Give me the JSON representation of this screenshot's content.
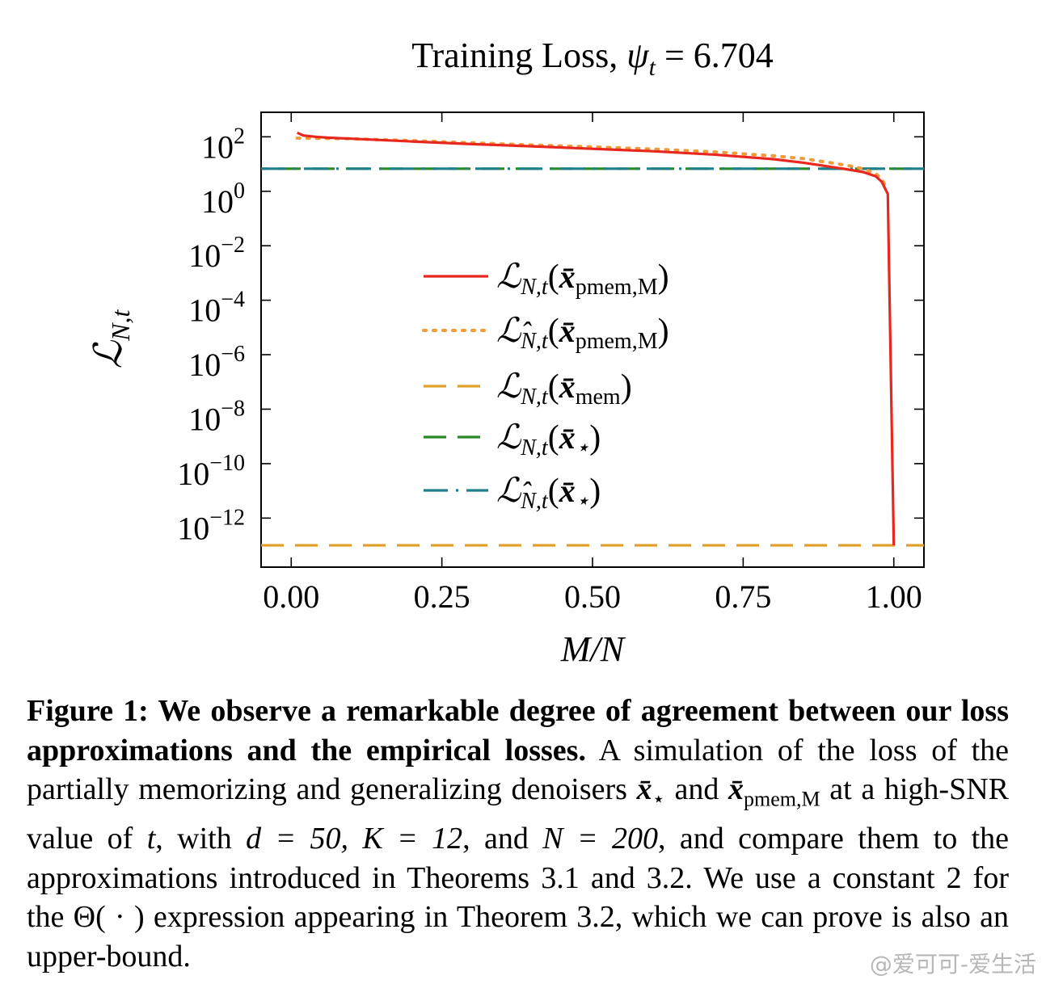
{
  "chart_data": {
    "type": "line",
    "title": "Training Loss, ψ_t = 6.704",
    "xlabel": "M/N",
    "ylabel": "L_{N,t}",
    "xlim": [
      -0.05,
      1.05
    ],
    "ylim_log10": [
      -13.8,
      2.9
    ],
    "yscale": "log",
    "x_ticks": [
      "0.00",
      "0.25",
      "0.50",
      "0.75",
      "1.00"
    ],
    "x_tick_values": [
      0.0,
      0.25,
      0.5,
      0.75,
      1.0
    ],
    "y_ticks": [
      {
        "base": "10",
        "exp": "2",
        "log10": 2
      },
      {
        "base": "10",
        "exp": "0",
        "log10": 0
      },
      {
        "base": "10",
        "exp": "−2",
        "log10": -2
      },
      {
        "base": "10",
        "exp": "−4",
        "log10": -4
      },
      {
        "base": "10",
        "exp": "−6",
        "log10": -6
      },
      {
        "base": "10",
        "exp": "−8",
        "log10": -8
      },
      {
        "base": "10",
        "exp": "−10",
        "log10": -10
      },
      {
        "base": "10",
        "exp": "−12",
        "log10": -12
      }
    ],
    "legend_position": "center",
    "series": [
      {
        "name": "L_{N,t}(x̄_{pmem,M})",
        "color": "#e8281e",
        "style": "solid",
        "x": [
          0.01,
          0.02,
          0.04,
          0.06,
          0.1,
          0.2,
          0.3,
          0.4,
          0.5,
          0.6,
          0.7,
          0.8,
          0.85,
          0.9,
          0.93,
          0.95,
          0.97,
          0.98,
          0.99,
          1.0
        ],
        "y_log10": [
          2.15,
          2.05,
          2.0,
          1.97,
          1.93,
          1.83,
          1.73,
          1.65,
          1.56,
          1.47,
          1.35,
          1.18,
          1.05,
          0.88,
          0.78,
          0.7,
          0.55,
          0.35,
          -0.1,
          -13.0
        ]
      },
      {
        "name": "L̂_{N,t}(x̄_{pmem,M})",
        "color": "#f29b3a",
        "style": "dotted",
        "x": [
          0.01,
          0.1,
          0.2,
          0.3,
          0.4,
          0.5,
          0.6,
          0.7,
          0.8,
          0.85,
          0.9,
          0.93,
          0.95,
          0.97,
          0.98,
          0.99
        ],
        "y_log10": [
          1.95,
          1.93,
          1.86,
          1.78,
          1.7,
          1.63,
          1.55,
          1.45,
          1.3,
          1.2,
          1.03,
          0.92,
          0.82,
          0.65,
          0.45,
          0.05
        ]
      },
      {
        "name": "L_{N,t}(x̄_{mem})",
        "color": "#e0a02c",
        "style": "dashed",
        "x": [
          -0.05,
          1.05
        ],
        "y_log10": [
          -13.0,
          -13.0
        ]
      },
      {
        "name": "L_{N,t}(x̄_⋆)",
        "color": "#2a8a2a",
        "style": "dashed",
        "x": [
          -0.05,
          1.05
        ],
        "y_log10": [
          0.83,
          0.83
        ]
      },
      {
        "name": "L̂_{N,t}(x̄_⋆)",
        "color": "#1f7f8c",
        "style": "dashdot",
        "x": [
          -0.05,
          1.05
        ],
        "y_log10": [
          0.83,
          0.83
        ]
      }
    ]
  },
  "title_parts": {
    "prefix": "Training Loss, ",
    "psi": "ψ",
    "sub": "t",
    "rest": " = 6.704"
  },
  "axis": {
    "xlabel": "M/N",
    "ylabel_main": "ℒ",
    "ylabel_sub": "N,t"
  },
  "legend": [
    {
      "glyph": "ℒ",
      "hat": false,
      "sub": "N,t",
      "arg": "x̄",
      "argsub": "pmem,M"
    },
    {
      "glyph": "ℒ",
      "hat": true,
      "sub": "N,t",
      "arg": "x̄",
      "argsub": "pmem,M"
    },
    {
      "glyph": "ℒ",
      "hat": false,
      "sub": "N,t",
      "arg": "x̄",
      "argsub": "mem"
    },
    {
      "glyph": "ℒ",
      "hat": false,
      "sub": "N,t",
      "arg": "x̄",
      "argsub": "⋆"
    },
    {
      "glyph": "ℒ",
      "hat": true,
      "sub": "N,t",
      "arg": "x̄",
      "argsub": "⋆"
    }
  ],
  "caption": {
    "bold": "Figure 1: We observe a remarkable degree of agreement between our loss approximations and the empirical losses.",
    "text_1": " A simulation of the loss of the partially memorizing and generalizing denoisers ",
    "sym_star": "x̄",
    "sym_star_sub": "⋆",
    "text_2": " and ",
    "sym_pmem": "x̄",
    "sym_pmem_sub": "pmem,M",
    "text_3": " at a high-SNR value of ",
    "t": "t",
    "text_4": ", with ",
    "d_eq": "d = 50, ",
    "k_eq": "K = 12",
    "text_5": ", and ",
    "n_eq": "N = 200",
    "text_6": ", and compare them to the approximations introduced in Theorems 3.1 and 3.2. We use a constant 2 for the Θ( · ) expression appearing in Theorem 3.2, which we can prove is also an upper-bound."
  },
  "watermark": "@爱可可-爱生活"
}
